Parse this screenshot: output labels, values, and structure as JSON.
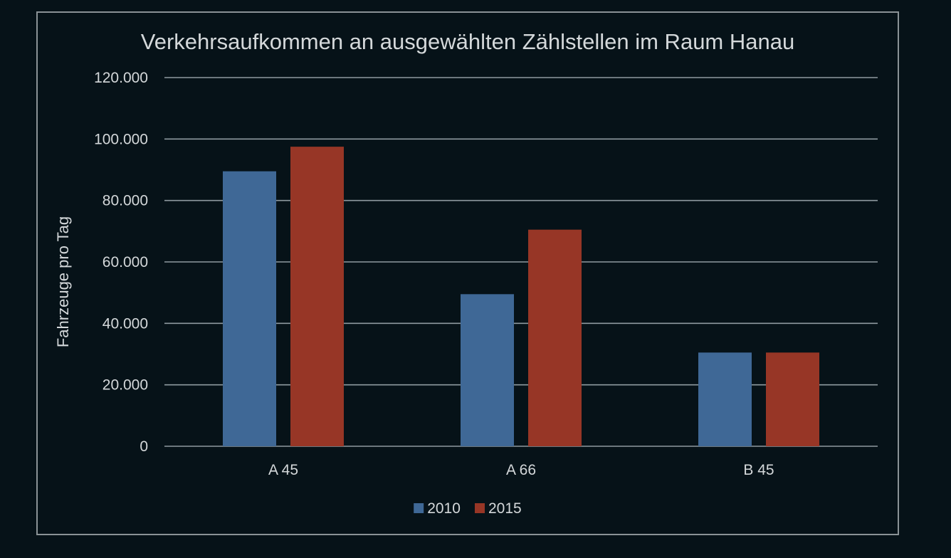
{
  "colors": {
    "background": "#061218",
    "frame": "#8a9296",
    "gridline": "#8f9a9f",
    "text": "#d4d8da",
    "series_2010": "#3f6896",
    "series_2015": "#973626"
  },
  "chart_data": {
    "type": "bar",
    "title": "Verkehrsaufkommen an ausgewählten Zählstellen im Raum Hanau",
    "xlabel": "",
    "ylabel": "Fahrzeuge pro Tag",
    "categories": [
      "A 45",
      "A 66",
      "B 45"
    ],
    "series": [
      {
        "name": "2010",
        "values": [
          89500,
          49500,
          30500
        ],
        "color": "#3f6896"
      },
      {
        "name": "2015",
        "values": [
          97500,
          70500,
          30500
        ],
        "color": "#973626"
      }
    ],
    "ylim": [
      0,
      120000
    ],
    "ytick_labels": [
      "0",
      "20.000",
      "40.000",
      "60.000",
      "80.000",
      "100.000",
      "120.000"
    ],
    "grid": true,
    "legend_position": "bottom"
  }
}
